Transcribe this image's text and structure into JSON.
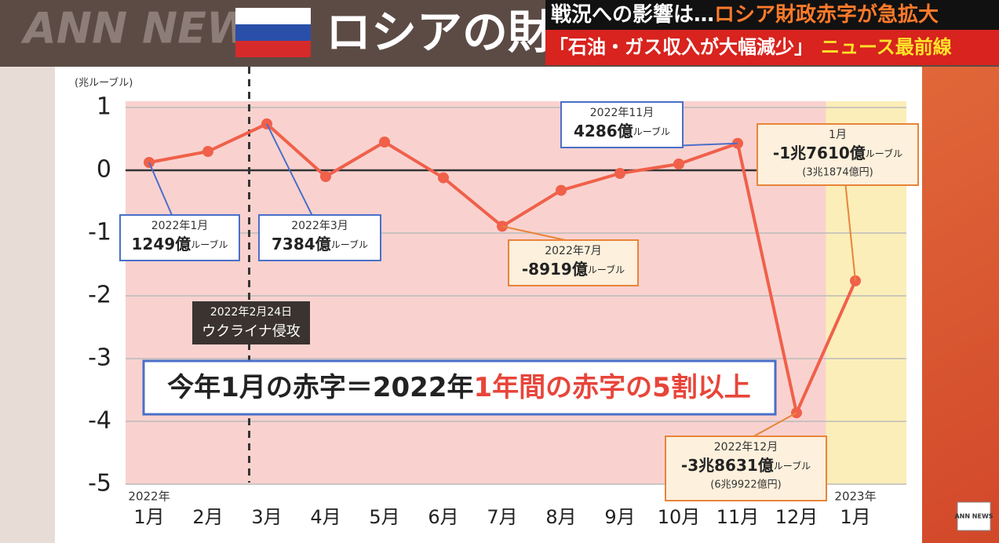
{
  "header": {
    "logo": "ANN NEWS",
    "title": "ロシアの財",
    "banner_lead": "戦況への影響は…",
    "banner_main": "ロシア財政赤字が急拡大",
    "banner_sub": "「石油・ガス収入が大幅減少」",
    "program": "ニュース最前線",
    "corner_logo": "ANN NEWS"
  },
  "chart_data": {
    "type": "line",
    "y_label": "(兆ルーブル)",
    "categories": [
      "1月",
      "2月",
      "3月",
      "4月",
      "5月",
      "6月",
      "7月",
      "8月",
      "9月",
      "10月",
      "11月",
      "12月",
      "1月"
    ],
    "year_labels": [
      "2022年",
      null,
      null,
      null,
      null,
      null,
      null,
      null,
      null,
      null,
      null,
      null,
      "2023年"
    ],
    "values": [
      0.1249,
      0.3,
      0.7384,
      -0.1,
      0.45,
      -0.12,
      -0.8919,
      -0.32,
      -0.05,
      0.1,
      0.4286,
      -3.8631,
      -1.761
    ],
    "value_labels": [
      "1249億",
      null,
      "7384億",
      null,
      null,
      null,
      "-8919億",
      null,
      null,
      null,
      "4286億",
      "-3兆8631億",
      "-1兆7610億"
    ],
    "label_titles": [
      "2022年1月",
      null,
      "2022年3月",
      null,
      null,
      null,
      "2022年7月",
      null,
      null,
      null,
      "2022年11月",
      "2022年12月",
      "1月"
    ],
    "label_notes": [
      null,
      null,
      null,
      null,
      null,
      null,
      null,
      null,
      null,
      null,
      null,
      "(6兆9922億円)",
      "(3兆1874億円)"
    ],
    "label_unit": "ルーブル",
    "color": "#f0604a",
    "ylim": [
      -5,
      1.1
    ],
    "yticks": [
      -5,
      -4,
      -3,
      -2,
      -1,
      0,
      1
    ],
    "grid": true,
    "region_colors": [
      "#f9d2cf",
      "#fbeeb8"
    ],
    "event": {
      "date": "2022年2月24日",
      "label": "ウクライナ侵攻"
    },
    "callout": [
      "今年1月の赤字＝2022年",
      "1年間の赤字の5割以上"
    ]
  }
}
